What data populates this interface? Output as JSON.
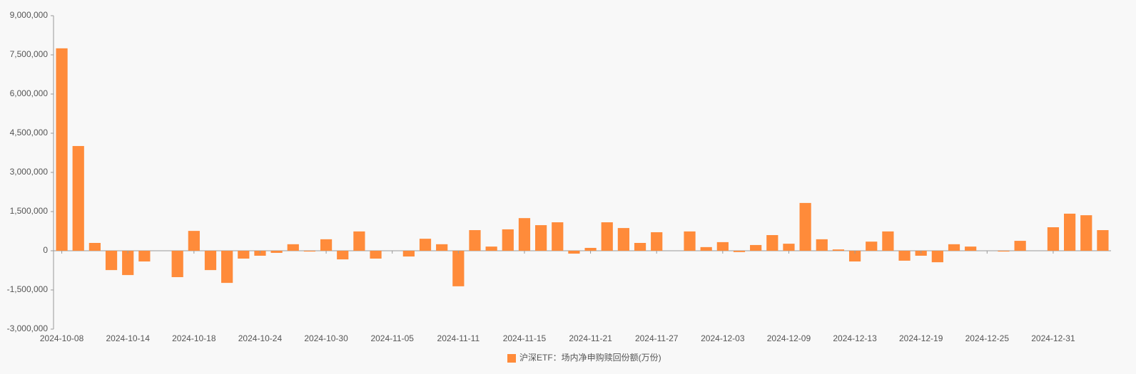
{
  "chart_data": {
    "type": "bar",
    "categories": [
      "2024-10-08",
      null,
      null,
      null,
      "2024-10-14",
      null,
      null,
      null,
      "2024-10-18",
      null,
      null,
      null,
      "2024-10-24",
      null,
      null,
      null,
      "2024-10-30",
      null,
      null,
      null,
      "2024-11-05",
      null,
      null,
      null,
      "2024-11-11",
      null,
      null,
      null,
      "2024-11-15",
      null,
      null,
      null,
      "2024-11-21",
      null,
      null,
      null,
      "2024-11-27",
      null,
      null,
      null,
      "2024-12-03",
      null,
      null,
      null,
      "2024-12-09",
      null,
      null,
      null,
      "2024-12-13",
      null,
      null,
      null,
      "2024-12-19",
      null,
      null,
      null,
      "2024-12-25",
      null,
      null,
      null,
      "2024-12-31",
      null,
      null,
      null
    ],
    "series": [
      {
        "name": "沪深ETF：场内净申购赎回份额(万份)",
        "color": "#ff8b3a",
        "values": [
          7750000,
          4010000,
          300000,
          -740000,
          -930000,
          -410000,
          0,
          -1010000,
          760000,
          -740000,
          -1230000,
          -300000,
          -190000,
          -80000,
          250000,
          -30000,
          440000,
          -330000,
          740000,
          -300000,
          0,
          -220000,
          460000,
          250000,
          -1360000,
          790000,
          160000,
          820000,
          1250000,
          980000,
          1090000,
          -110000,
          110000,
          1090000,
          870000,
          300000,
          710000,
          0,
          740000,
          140000,
          330000,
          -50000,
          220000,
          600000,
          270000,
          1830000,
          440000,
          50000,
          -410000,
          350000,
          740000,
          -380000,
          -190000,
          -440000,
          250000,
          160000,
          0,
          -30000,
          380000,
          0,
          900000,
          1420000,
          1360000,
          790000
        ]
      }
    ],
    "ylim": [
      -3000000,
      9000000
    ],
    "yticks": [
      {
        "value": -3000000,
        "label": "-3,000,000"
      },
      {
        "value": -1500000,
        "label": "-1,500,000"
      },
      0,
      {
        "value": 1500000,
        "label": "1,500,000"
      },
      {
        "value": 3000000,
        "label": "3,000,000"
      },
      {
        "value": 4500000,
        "label": "4,500,000"
      },
      {
        "value": 6000000,
        "label": "6,000,000"
      },
      {
        "value": 7500000,
        "label": "7,500,000"
      },
      {
        "value": 9000000,
        "label": "9,000,000"
      }
    ],
    "legend": "bottom"
  }
}
